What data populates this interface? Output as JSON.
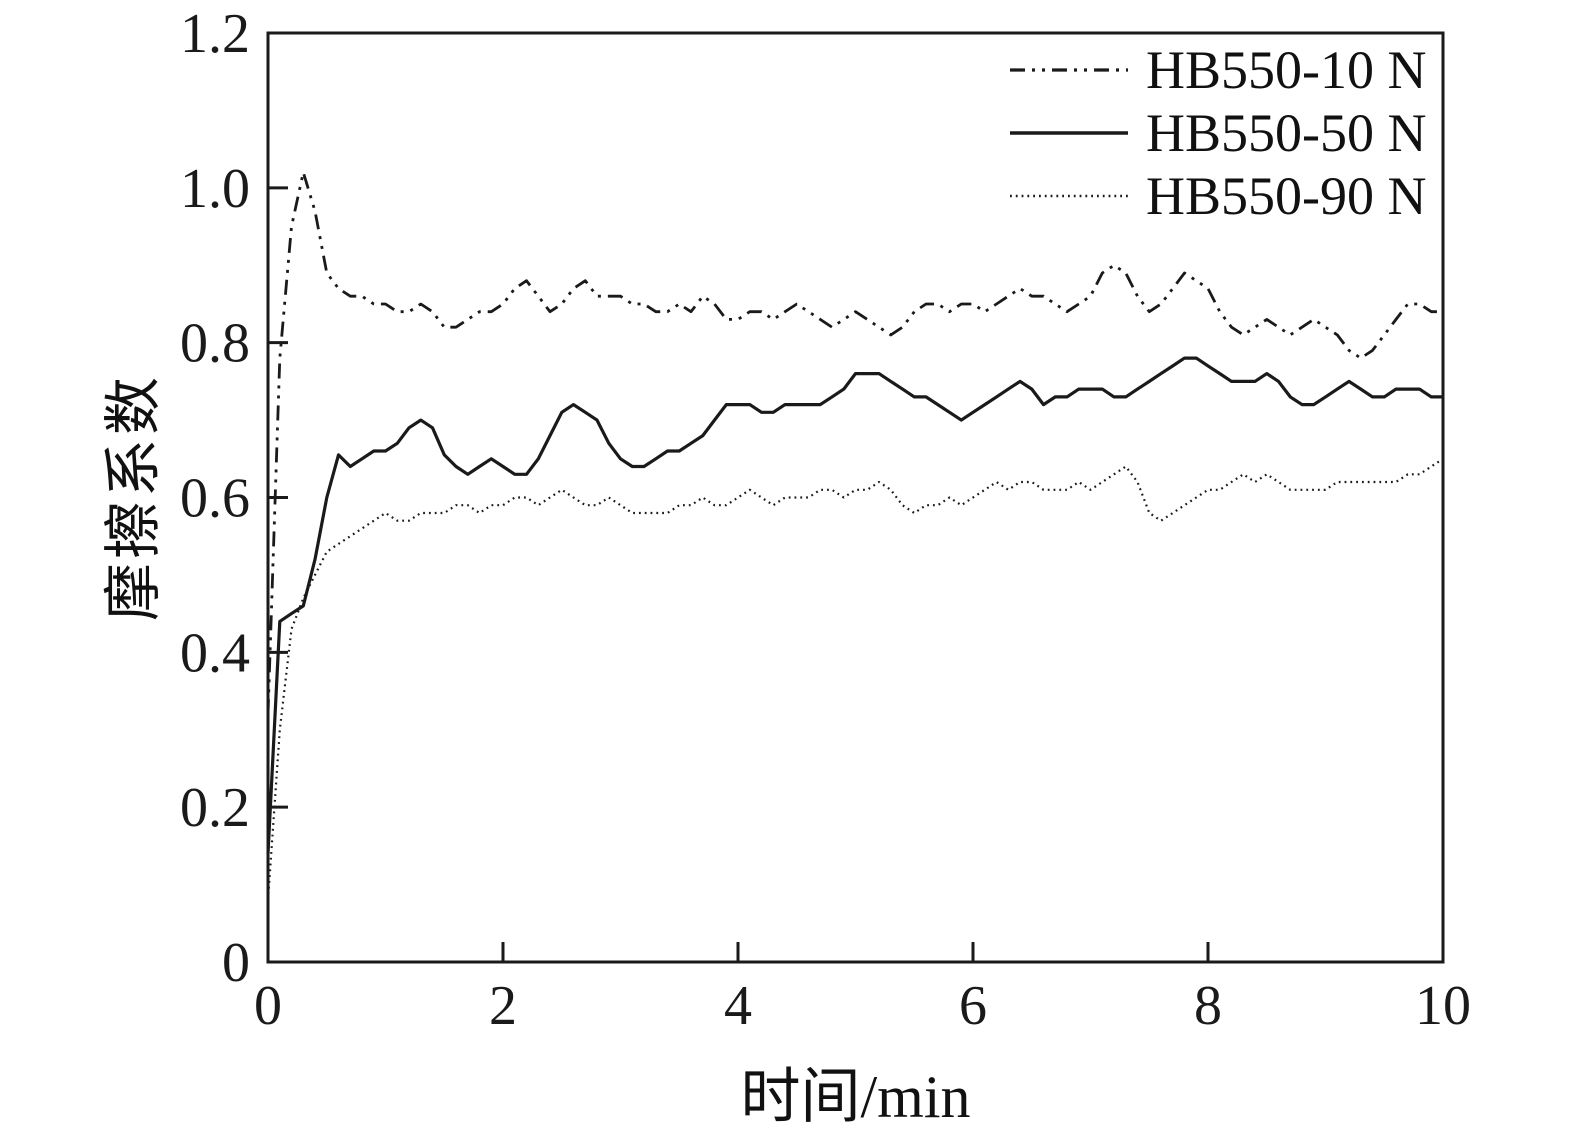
{
  "figure": {
    "background": "#ffffff"
  },
  "chart_data": {
    "type": "line",
    "title": "",
    "xlabel": "时间/min",
    "ylabel": "摩擦系数",
    "xlim": [
      0,
      10
    ],
    "ylim": [
      0,
      1.2
    ],
    "xticks": [
      0,
      2,
      4,
      6,
      8,
      10
    ],
    "xtick_labels": [
      "0",
      "2",
      "4",
      "6",
      "8",
      "10"
    ],
    "yticks": [
      0,
      0.2,
      0.4,
      0.6,
      0.8,
      1.0,
      1.2
    ],
    "ytick_labels": [
      "0",
      "0.2",
      "0.4",
      "0.6",
      "0.8",
      "1.0",
      "1.2"
    ],
    "grid": false,
    "legend_position": "top-right-inside",
    "line_color": "#1a1a1a",
    "axis_color": "#1a1a1a",
    "x0": 0,
    "dx": 0.1,
    "series": [
      {
        "name": "HB550-10 N",
        "style": "dashdotdot",
        "values": [
          0.32,
          0.78,
          0.95,
          1.02,
          0.97,
          0.89,
          0.87,
          0.86,
          0.86,
          0.85,
          0.85,
          0.84,
          0.84,
          0.85,
          0.84,
          0.82,
          0.82,
          0.83,
          0.84,
          0.84,
          0.85,
          0.87,
          0.88,
          0.86,
          0.84,
          0.85,
          0.87,
          0.88,
          0.86,
          0.86,
          0.86,
          0.85,
          0.85,
          0.84,
          0.84,
          0.85,
          0.84,
          0.86,
          0.85,
          0.83,
          0.83,
          0.84,
          0.84,
          0.83,
          0.84,
          0.85,
          0.84,
          0.83,
          0.82,
          0.83,
          0.84,
          0.83,
          0.82,
          0.81,
          0.82,
          0.84,
          0.85,
          0.85,
          0.84,
          0.85,
          0.85,
          0.84,
          0.85,
          0.86,
          0.87,
          0.86,
          0.86,
          0.85,
          0.84,
          0.85,
          0.86,
          0.89,
          0.9,
          0.89,
          0.86,
          0.84,
          0.85,
          0.87,
          0.89,
          0.88,
          0.87,
          0.84,
          0.82,
          0.81,
          0.82,
          0.83,
          0.82,
          0.81,
          0.82,
          0.83,
          0.82,
          0.81,
          0.79,
          0.78,
          0.79,
          0.81,
          0.83,
          0.85,
          0.85,
          0.84,
          0.84
        ]
      },
      {
        "name": "HB550-50 N",
        "style": "solid",
        "values": [
          0.14,
          0.44,
          0.45,
          0.46,
          0.52,
          0.6,
          0.655,
          0.64,
          0.65,
          0.66,
          0.66,
          0.67,
          0.69,
          0.7,
          0.69,
          0.655,
          0.64,
          0.63,
          0.64,
          0.65,
          0.64,
          0.63,
          0.63,
          0.65,
          0.68,
          0.71,
          0.72,
          0.71,
          0.7,
          0.67,
          0.65,
          0.64,
          0.64,
          0.65,
          0.66,
          0.66,
          0.67,
          0.68,
          0.7,
          0.72,
          0.72,
          0.72,
          0.71,
          0.71,
          0.72,
          0.72,
          0.72,
          0.72,
          0.73,
          0.74,
          0.76,
          0.76,
          0.76,
          0.75,
          0.74,
          0.73,
          0.73,
          0.72,
          0.71,
          0.7,
          0.71,
          0.72,
          0.73,
          0.74,
          0.75,
          0.74,
          0.72,
          0.73,
          0.73,
          0.74,
          0.74,
          0.74,
          0.73,
          0.73,
          0.74,
          0.75,
          0.76,
          0.77,
          0.78,
          0.78,
          0.77,
          0.76,
          0.75,
          0.75,
          0.75,
          0.76,
          0.75,
          0.73,
          0.72,
          0.72,
          0.73,
          0.74,
          0.75,
          0.74,
          0.73,
          0.73,
          0.74,
          0.74,
          0.74,
          0.73,
          0.73
        ]
      },
      {
        "name": "HB550-90 N",
        "style": "dotted",
        "values": [
          0.08,
          0.3,
          0.43,
          0.47,
          0.5,
          0.53,
          0.54,
          0.55,
          0.56,
          0.57,
          0.58,
          0.57,
          0.57,
          0.58,
          0.58,
          0.58,
          0.59,
          0.59,
          0.58,
          0.59,
          0.59,
          0.6,
          0.6,
          0.59,
          0.6,
          0.61,
          0.6,
          0.59,
          0.59,
          0.6,
          0.59,
          0.58,
          0.58,
          0.58,
          0.58,
          0.59,
          0.59,
          0.6,
          0.59,
          0.59,
          0.6,
          0.61,
          0.6,
          0.59,
          0.6,
          0.6,
          0.6,
          0.61,
          0.61,
          0.6,
          0.61,
          0.61,
          0.62,
          0.61,
          0.59,
          0.58,
          0.59,
          0.59,
          0.6,
          0.59,
          0.6,
          0.61,
          0.62,
          0.61,
          0.62,
          0.62,
          0.61,
          0.61,
          0.61,
          0.62,
          0.61,
          0.62,
          0.63,
          0.64,
          0.62,
          0.58,
          0.57,
          0.58,
          0.59,
          0.6,
          0.61,
          0.61,
          0.62,
          0.63,
          0.62,
          0.63,
          0.62,
          0.61,
          0.61,
          0.61,
          0.61,
          0.62,
          0.62,
          0.62,
          0.62,
          0.62,
          0.62,
          0.63,
          0.63,
          0.64,
          0.65
        ]
      }
    ]
  }
}
